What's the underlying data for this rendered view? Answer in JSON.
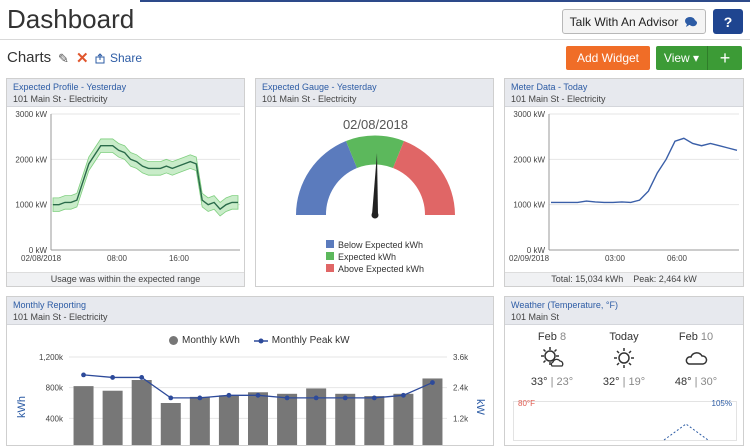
{
  "header": {
    "title": "Dashboard",
    "advisor_label": "Talk With An Advisor",
    "help_label": "?"
  },
  "toolbar": {
    "section_title": "Charts",
    "share_label": "Share",
    "add_widget_label": "Add Widget",
    "view_label": "View",
    "plus_label": "+"
  },
  "widgets": {
    "expected_profile": {
      "title": "Expected Profile - Yesterday",
      "subtitle": "101 Main St - Electricity",
      "footer": "Usage was within the expected range",
      "chart_data": {
        "type": "line",
        "y_ticks": [
          "3000 kW",
          "2000 kW",
          "1000 kW",
          "0 kW"
        ],
        "x_ticks": [
          "02/08/2018",
          "08:00",
          "16:00"
        ],
        "ylim": [
          0,
          3000
        ],
        "series": [
          {
            "values": [
              1000,
              1000,
              1050,
              1050,
              1100,
              1500,
              1900,
              2100,
              2300,
              2300,
              2300,
              2200,
              2150,
              2000,
              1950,
              1850,
              1800,
              1800,
              1800,
              1850,
              1800,
              1850,
              1900,
              1950,
              1900,
              1100,
              1000,
              1050,
              900,
              1000,
              1050,
              1050
            ]
          }
        ]
      }
    },
    "expected_gauge": {
      "title": "Expected Gauge - Yesterday",
      "subtitle": "101 Main St - Electricity",
      "date": "02/08/2018",
      "legend": [
        "Below Expected kWh",
        "Expected kWh",
        "Above Expected kWh"
      ],
      "colors": {
        "below": "#5b7bbd",
        "expected": "#5cb85c",
        "above": "#e06666"
      }
    },
    "meter_data": {
      "title": "Meter Data - Today",
      "subtitle": "101 Main St - Electricity",
      "footer_total": "Total: 15,034 kWh",
      "footer_peak": "Peak: 2,464 kW",
      "chart_data": {
        "type": "line",
        "y_ticks": [
          "3000 kW",
          "2000 kW",
          "1000 kW",
          "0 kW"
        ],
        "x_ticks": [
          "02/09/2018",
          "03:00",
          "06:00"
        ],
        "ylim": [
          0,
          3000
        ],
        "series": [
          {
            "values": [
              1050,
              1050,
              1050,
              1050,
              1080,
              1060,
              1050,
              1050,
              1060,
              1050,
              1100,
              1300,
              1700,
              2000,
              2400,
              2464,
              2350,
              2300,
              2350,
              2300,
              2250,
              2200
            ]
          }
        ]
      }
    },
    "monthly": {
      "title": "Monthly Reporting",
      "subtitle": "101 Main St - Electricity",
      "legend_kwh": "Monthly kWh",
      "legend_peak": "Monthly Peak kW",
      "y_left_label": "kWh",
      "y_right_label": "kW",
      "chart_data": {
        "type": "bar",
        "y_left_ticks": [
          "1,200k",
          "800k",
          "400k"
        ],
        "y_right_ticks": [
          "3.6k",
          "2.4k",
          "1.2k"
        ],
        "series": [
          {
            "name": "Monthly kWh",
            "values": [
              820,
              760,
              900,
              600,
              680,
              700,
              740,
              720,
              790,
              720,
              690,
              720,
              920
            ]
          },
          {
            "name": "Monthly Peak kW",
            "values": [
              2.9,
              2.8,
              2.8,
              2.0,
              2.0,
              2.1,
              2.1,
              2.0,
              2.0,
              2.0,
              2.0,
              2.1,
              2.6
            ]
          }
        ]
      }
    },
    "weather": {
      "title": "Weather (Temperature, °F)",
      "subtitle": "101 Main St",
      "days": [
        {
          "label": "Feb",
          "num": "8",
          "high": "33°",
          "low": "23°",
          "icon": "partly-sunny-icon"
        },
        {
          "label": "Today",
          "num": "",
          "high": "32°",
          "low": "19°",
          "icon": "sun-icon"
        },
        {
          "label": "Feb",
          "num": "10",
          "high": "48°",
          "low": "30°",
          "icon": "cloud-icon"
        }
      ],
      "temp_label": "80°F",
      "humidity_label": "105%"
    }
  }
}
